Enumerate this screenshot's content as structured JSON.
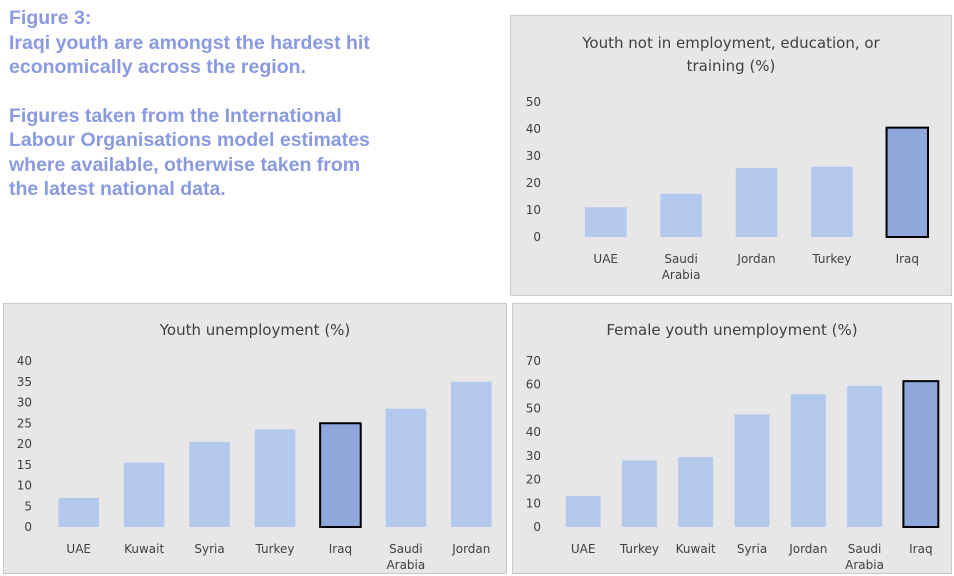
{
  "figure": {
    "label": "Figure 3:",
    "headline_lines": [
      "Iraqi youth are amongst the hardest hit",
      "economically across the region."
    ],
    "note_lines": [
      "Figures taken from the International",
      "Labour Organisations model estimates",
      "where available, otherwise taken from",
      "the latest national data."
    ]
  },
  "colors": {
    "bar": "#b4c7ec",
    "highlight": "#8fa8dc",
    "highlight_border": "#000000",
    "panel_bg": "#e7e7e7",
    "text": "#404040",
    "heading": "#8a9ae0"
  },
  "chart_data": [
    {
      "type": "bar",
      "title_lines": [
        "Youth not in employment, education, or",
        "training (%)"
      ],
      "categories": [
        [
          "UAE"
        ],
        [
          "Saudi",
          "Arabia"
        ],
        [
          "Jordan"
        ],
        [
          "Turkey"
        ],
        [
          "Iraq"
        ]
      ],
      "values": [
        11,
        16,
        25.5,
        26,
        40.5
      ],
      "highlight_index": 4,
      "ylim": [
        0,
        50
      ],
      "yticks": [
        0,
        10,
        20,
        30,
        40,
        50
      ],
      "xlabel": "",
      "ylabel": "",
      "grid": false,
      "legend": "none"
    },
    {
      "type": "bar",
      "title_lines": [
        "Youth unemployment (%)"
      ],
      "categories": [
        [
          "UAE"
        ],
        [
          "Kuwait"
        ],
        [
          "Syria"
        ],
        [
          "Turkey"
        ],
        [
          "Iraq"
        ],
        [
          "Saudi",
          "Arabia"
        ],
        [
          "Jordan"
        ]
      ],
      "values": [
        7,
        15.5,
        20.5,
        23.5,
        25,
        28.5,
        35
      ],
      "highlight_index": 4,
      "ylim": [
        0,
        40
      ],
      "yticks": [
        0,
        5,
        10,
        15,
        20,
        25,
        30,
        35,
        40
      ],
      "xlabel": "",
      "ylabel": "",
      "grid": false,
      "legend": "none"
    },
    {
      "type": "bar",
      "title_lines": [
        "Female youth unemployment (%)"
      ],
      "categories": [
        [
          "UAE"
        ],
        [
          "Turkey"
        ],
        [
          "Kuwait"
        ],
        [
          "Syria"
        ],
        [
          "Jordan"
        ],
        [
          "Saudi",
          "Arabia"
        ],
        [
          "Iraq"
        ]
      ],
      "values": [
        13,
        28,
        29.5,
        47.5,
        56,
        59.5,
        61.5
      ],
      "highlight_index": 6,
      "ylim": [
        0,
        70
      ],
      "yticks": [
        0,
        10,
        20,
        30,
        40,
        50,
        60,
        70
      ],
      "xlabel": "",
      "ylabel": "",
      "grid": false,
      "legend": "none"
    }
  ]
}
